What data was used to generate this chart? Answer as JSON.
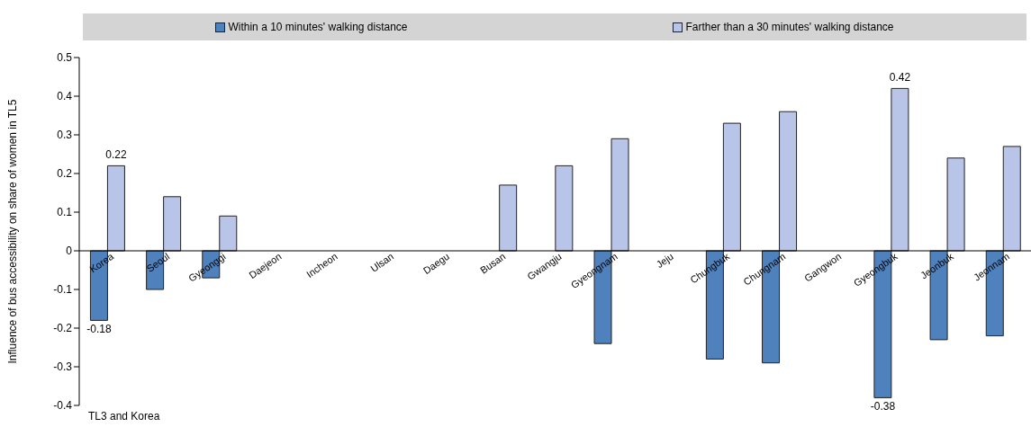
{
  "chart_data": {
    "type": "bar",
    "ylabel": "Influence of bus accessibility on share of women in TL5",
    "categories": [
      "Korea",
      "Seoul",
      "Gyeonggi",
      "Daejeon",
      "Incheon",
      "Ulsan",
      "Daegu",
      "Busan",
      "Gwangju",
      "Gyeongnam",
      "Jeju",
      "Chungbuk",
      "Chungnam",
      "Gangwon",
      "Gyeongbuk",
      "Jeonbuk",
      "Jeonnam"
    ],
    "series": [
      {
        "name": "Within a 10 minutes' walking distance",
        "color": "#4f81bd",
        "values": [
          -0.18,
          -0.1,
          -0.07,
          null,
          null,
          null,
          null,
          null,
          null,
          -0.24,
          null,
          -0.28,
          -0.29,
          null,
          -0.38,
          -0.23,
          -0.22
        ],
        "value_labels": [
          "-0.18",
          null,
          null,
          null,
          null,
          null,
          null,
          null,
          null,
          null,
          null,
          null,
          null,
          null,
          "-0.38",
          null,
          null
        ]
      },
      {
        "name": "Farther than a 30 minutes' walking distance",
        "color": "#b8c4e8",
        "values": [
          0.22,
          0.14,
          0.09,
          null,
          null,
          null,
          null,
          0.17,
          0.22,
          0.29,
          null,
          0.33,
          0.36,
          null,
          0.42,
          0.24,
          0.27
        ],
        "value_labels": [
          "0.22",
          null,
          null,
          null,
          null,
          null,
          null,
          null,
          null,
          null,
          null,
          null,
          null,
          null,
          "0.42",
          null,
          null
        ]
      }
    ],
    "ylim": [
      -0.4,
      0.5
    ],
    "yticks": [
      -0.4,
      -0.3,
      -0.2,
      -0.1,
      0,
      0.1,
      0.2,
      0.3,
      0.4,
      0.5
    ],
    "grid": false,
    "legend": "top",
    "annotations": [
      "TL3 and Korea"
    ]
  }
}
